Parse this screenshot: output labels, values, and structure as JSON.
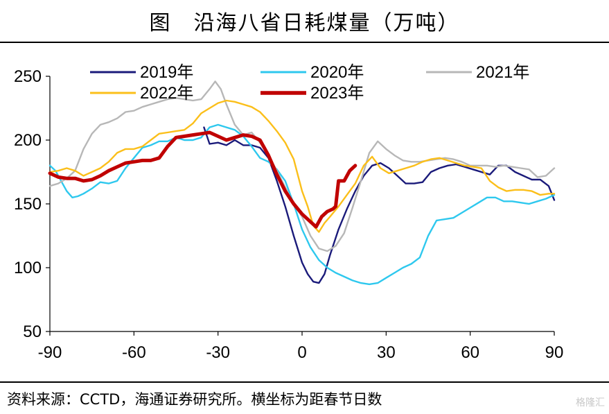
{
  "title": "图　沿海八省日耗煤量（万吨）",
  "source": "资料来源：CCTD，海通证券研究所。横坐标为距春节日数",
  "watermark": "格隆汇",
  "chart_data": {
    "type": "line",
    "title": "图　沿海八省日耗煤量（万吨）",
    "xlabel": "",
    "ylabel": "",
    "xlim": [
      -90,
      90
    ],
    "ylim": [
      50,
      250
    ],
    "xticks": [
      -90,
      -60,
      -30,
      0,
      30,
      60,
      90
    ],
    "yticks": [
      50,
      100,
      150,
      200,
      250
    ],
    "grid": false,
    "legend": "top",
    "series": [
      {
        "name": "2019年",
        "color": "#1a1a7a",
        "width": 2.4,
        "x": [
          -35,
          -33,
          -30,
          -27,
          -24,
          -21,
          -18,
          -15,
          -12,
          -9,
          -6,
          -3,
          0,
          2,
          4,
          6,
          8,
          10,
          13,
          16,
          19,
          22,
          25,
          28,
          31,
          34,
          37,
          40,
          43,
          46,
          49,
          52,
          55,
          58,
          61,
          64,
          67,
          70,
          73,
          76,
          79,
          82,
          85,
          88,
          90
        ],
        "values": [
          210,
          197,
          198,
          196,
          200,
          196,
          196,
          194,
          186,
          168,
          148,
          125,
          104,
          95,
          89,
          88,
          95,
          110,
          130,
          146,
          160,
          172,
          180,
          182,
          178,
          172,
          166,
          166,
          167,
          175,
          178,
          180,
          181,
          179,
          177,
          175,
          173,
          180,
          180,
          175,
          172,
          169,
          169,
          164,
          153
        ]
      },
      {
        "name": "2020年",
        "color": "#2ec8ee",
        "width": 2.4,
        "x": [
          -90,
          -88,
          -86,
          -84,
          -82,
          -80,
          -78,
          -75,
          -72,
          -69,
          -66,
          -63,
          -60,
          -57,
          -54,
          -51,
          -48,
          -45,
          -42,
          -39,
          -36,
          -33,
          -30,
          -27,
          -24,
          -21,
          -18,
          -15,
          -12,
          -9,
          -6,
          -3,
          0,
          3,
          6,
          9,
          12,
          15,
          18,
          21,
          24,
          27,
          30,
          33,
          36,
          39,
          42,
          45,
          48,
          51,
          54,
          57,
          60,
          63,
          66,
          69,
          72,
          75,
          78,
          81,
          84,
          87,
          90
        ],
        "values": [
          180,
          176,
          168,
          160,
          155,
          156,
          158,
          162,
          167,
          166,
          168,
          178,
          186,
          194,
          196,
          199,
          199,
          202,
          200,
          200,
          202,
          210,
          212,
          210,
          208,
          203,
          195,
          186,
          183,
          177,
          168,
          150,
          130,
          116,
          106,
          100,
          96,
          93,
          90,
          88,
          87,
          88,
          92,
          96,
          100,
          103,
          108,
          125,
          137,
          138,
          139,
          143,
          147,
          151,
          155,
          155,
          152,
          152,
          151,
          150,
          152,
          154,
          157
        ]
      },
      {
        "name": "2021年",
        "color": "#b7b7b7",
        "width": 2.4,
        "x": [
          -90,
          -87,
          -84,
          -81,
          -78,
          -75,
          -72,
          -69,
          -66,
          -63,
          -60,
          -57,
          -54,
          -51,
          -48,
          -45,
          -42,
          -39,
          -36,
          -33,
          -31,
          -29,
          -27,
          -24,
          -21,
          -18,
          -15,
          -12,
          -9,
          -6,
          -3,
          0,
          3,
          6,
          9,
          12,
          15,
          18,
          21,
          24,
          27,
          30,
          33,
          36,
          39,
          42,
          45,
          48,
          51,
          54,
          57,
          60,
          63,
          66,
          69,
          72,
          75,
          78,
          81,
          84,
          87,
          90
        ],
        "values": [
          164,
          166,
          170,
          176,
          193,
          205,
          212,
          214,
          217,
          222,
          223,
          226,
          228,
          230,
          232,
          233,
          232,
          231,
          232,
          240,
          246,
          240,
          228,
          212,
          204,
          206,
          198,
          188,
          176,
          163,
          150,
          140,
          125,
          115,
          113,
          117,
          127,
          147,
          168,
          190,
          199,
          193,
          188,
          184,
          183,
          183,
          184,
          185,
          186,
          185,
          183,
          180,
          180,
          180,
          179,
          180,
          179,
          178,
          177,
          171,
          172,
          178
        ]
      },
      {
        "name": "2022年",
        "color": "#fbbf1a",
        "width": 2.4,
        "x": [
          -90,
          -87,
          -84,
          -81,
          -78,
          -75,
          -72,
          -69,
          -66,
          -63,
          -60,
          -57,
          -54,
          -51,
          -48,
          -45,
          -42,
          -39,
          -36,
          -33,
          -30,
          -27,
          -24,
          -21,
          -18,
          -15,
          -12,
          -9,
          -6,
          -3,
          0,
          2,
          4,
          6,
          8,
          10,
          13,
          16,
          19,
          22,
          25,
          28,
          31,
          34,
          37,
          40,
          43,
          46,
          49,
          52,
          55,
          58,
          61,
          64,
          67,
          70,
          73,
          76,
          79,
          82,
          85,
          88,
          90
        ],
        "values": [
          175,
          176,
          178,
          176,
          172,
          175,
          178,
          183,
          190,
          193,
          193,
          195,
          200,
          205,
          206,
          207,
          208,
          213,
          221,
          225,
          229,
          231,
          230,
          228,
          226,
          222,
          215,
          207,
          198,
          185,
          160,
          148,
          133,
          128,
          135,
          140,
          148,
          157,
          166,
          180,
          187,
          178,
          174,
          176,
          178,
          180,
          183,
          185,
          186,
          184,
          182,
          180,
          179,
          178,
          168,
          163,
          160,
          161,
          161,
          160,
          157,
          158,
          158
        ]
      },
      {
        "name": "2023年",
        "color": "#c00000",
        "width": 5,
        "x": [
          -90,
          -87,
          -84,
          -81,
          -78,
          -75,
          -72,
          -69,
          -66,
          -63,
          -60,
          -57,
          -54,
          -51,
          -48,
          -45,
          -42,
          -39,
          -36,
          -33,
          -30,
          -27,
          -24,
          -21,
          -18,
          -15,
          -12,
          -9,
          -6,
          -3,
          0,
          3,
          5,
          7,
          9,
          11,
          12,
          13,
          15,
          17,
          19
        ],
        "values": [
          174,
          171,
          170,
          170,
          168,
          169,
          172,
          176,
          179,
          182,
          183,
          184,
          184,
          186,
          195,
          202,
          203,
          204,
          205,
          206,
          203,
          200,
          202,
          204,
          203,
          200,
          188,
          173,
          160,
          150,
          142,
          136,
          132,
          140,
          144,
          146,
          148,
          168,
          168,
          176,
          180
        ]
      }
    ]
  }
}
